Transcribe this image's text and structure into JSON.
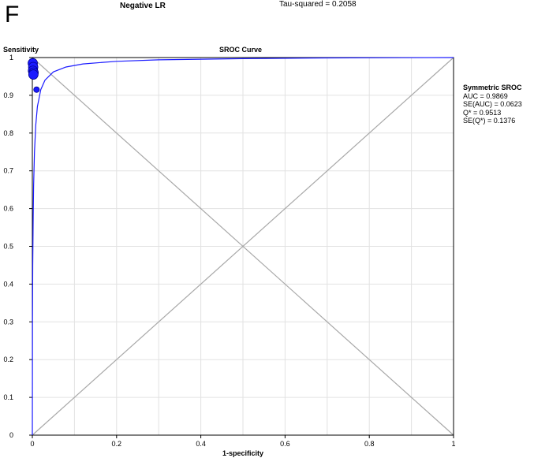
{
  "header": {
    "panel_letter": "F",
    "top_label": "Negative LR",
    "top_stat": "Tau-squared = 0.2058"
  },
  "chart_data": {
    "type": "scatter",
    "title": "SROC Curve",
    "xlabel": "1-specificity",
    "ylabel": "Sensitivity",
    "xlim": [
      0,
      1
    ],
    "ylim": [
      0,
      1
    ],
    "x_ticks": [
      "0",
      "0.2",
      "0.4",
      "0.6",
      "0.8",
      "1"
    ],
    "y_ticks": [
      "0",
      "0.1",
      "0.2",
      "0.3",
      "0.4",
      "0.5",
      "0.6",
      "0.7",
      "0.8",
      "0.9",
      "1"
    ],
    "grid": true,
    "curve": {
      "name": "Symmetric SROC",
      "color": "#1a1aff",
      "auc": 0.9869,
      "x": [
        0,
        0.0004,
        0.001,
        0.002,
        0.003,
        0.005,
        0.008,
        0.012,
        0.02,
        0.03,
        0.05,
        0.08,
        0.12,
        0.2,
        0.3,
        0.5,
        0.7,
        1.0
      ],
      "y": [
        0,
        0.3,
        0.45,
        0.58,
        0.66,
        0.75,
        0.82,
        0.87,
        0.915,
        0.94,
        0.962,
        0.975,
        0.983,
        0.99,
        0.994,
        0.997,
        0.999,
        1.0
      ]
    },
    "points": {
      "color": "#1a1aff",
      "x": [
        0.001,
        0.002,
        0.0015,
        0.003,
        0.0025,
        0.01
      ],
      "y": [
        0.985,
        0.975,
        0.965,
        0.96,
        0.955,
        0.915
      ],
      "size": [
        1.0,
        1.0,
        1.0,
        1.0,
        1.0,
        0.6
      ]
    },
    "reference_lines": [
      "diagonal",
      "anti-diagonal"
    ],
    "annotation": {
      "heading": "Symmetric SROC",
      "lines": [
        "AUC = 0.9869",
        "SE(AUC) = 0.0623",
        "Q* = 0.9513",
        "SE(Q*) = 0.1376"
      ]
    }
  }
}
